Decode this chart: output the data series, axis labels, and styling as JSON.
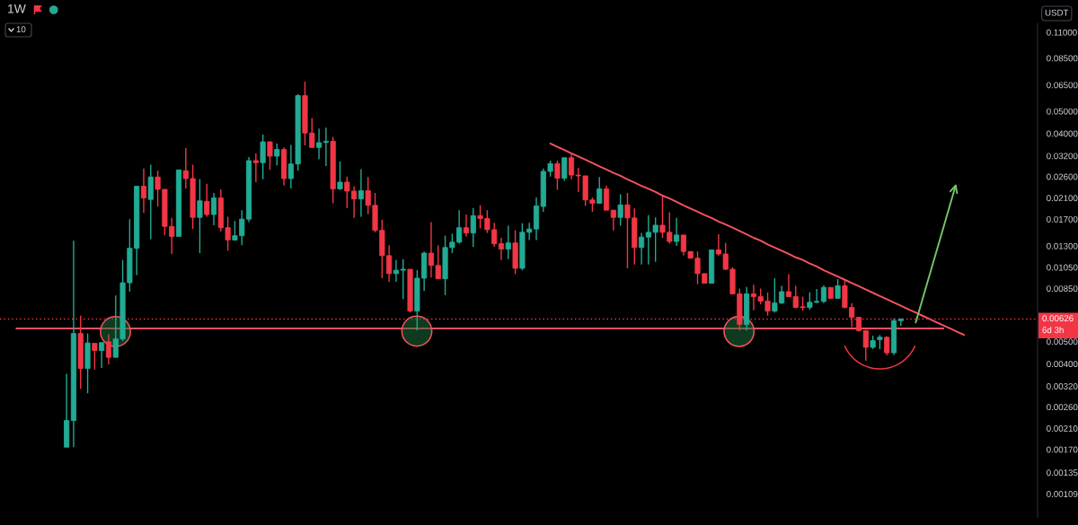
{
  "chart_data": {
    "type": "candlestick",
    "title": "1W",
    "ylabel": "USDT",
    "categories": [
      null,
      null,
      null,
      null,
      null,
      null,
      null,
      null,
      null,
      null,
      null,
      null,
      null,
      null,
      null,
      null,
      null,
      null,
      null,
      null,
      null,
      null,
      null,
      null,
      null,
      null,
      null,
      null,
      null,
      null,
      null,
      null,
      null,
      null,
      null,
      null,
      null,
      null,
      null,
      null,
      null,
      null,
      null,
      null,
      null,
      null,
      null,
      null,
      null,
      null,
      null,
      null,
      null,
      null,
      null,
      null,
      null,
      null,
      null,
      null,
      null,
      null,
      null,
      null,
      null,
      null,
      null,
      null,
      null,
      null,
      null,
      null,
      null,
      null,
      null,
      null,
      null,
      null,
      null,
      null,
      null,
      null,
      null,
      null,
      null,
      null,
      null,
      null,
      null,
      null,
      null,
      null,
      null,
      null,
      null,
      null,
      null,
      null,
      null,
      null,
      null,
      null,
      null,
      null,
      null,
      null,
      null,
      null,
      null,
      null,
      null,
      null,
      null,
      null,
      null,
      null,
      null,
      null,
      null,
      null,
      null,
      null,
      null,
      null,
      null,
      null,
      null,
      null,
      null,
      null,
      null,
      null,
      null,
      null,
      null,
      null,
      null,
      null,
      null,
      null,
      null,
      null,
      null,
      null,
      null,
      null,
      null,
      null
    ],
    "ohlc": [
      null,
      null,
      null,
      null,
      null,
      null,
      null,
      null,
      null,
      [
        0.00174,
        0.00362,
        0.00174,
        0.00227
      ],
      [
        0.00227,
        0.0137,
        0.00174,
        0.00542
      ],
      [
        0.00542,
        0.00648,
        0.00312,
        0.00382
      ],
      [
        0.00382,
        0.00542,
        0.00298,
        0.00493
      ],
      [
        0.00491,
        0.00491,
        0.00378,
        0.00457
      ],
      [
        0.00457,
        0.00495,
        0.00384,
        0.00495
      ],
      [
        0.00499,
        0.00537,
        0.00398,
        0.00427
      ],
      [
        0.00427,
        0.00793,
        0.00427,
        0.00513
      ],
      [
        0.00513,
        0.0113,
        0.00503,
        0.009
      ],
      [
        0.009,
        0.017,
        0.00824,
        0.0127
      ],
      [
        0.0127,
        0.0236,
        0.00971,
        0.0236
      ],
      [
        0.0236,
        0.0282,
        0.0181,
        0.021
      ],
      [
        0.0207,
        0.0293,
        0.0139,
        0.0259
      ],
      [
        0.0259,
        0.0276,
        0.0193,
        0.0229
      ],
      [
        0.0229,
        0.0229,
        0.0145,
        0.0158
      ],
      [
        0.0158,
        0.0172,
        0.012,
        0.0143
      ],
      [
        0.0143,
        0.0278,
        0.0143,
        0.0278
      ],
      [
        0.0276,
        0.0346,
        0.0231,
        0.0255
      ],
      [
        0.0255,
        0.0293,
        0.0154,
        0.0173
      ],
      [
        0.0173,
        0.0254,
        0.0121,
        0.0204
      ],
      [
        0.0203,
        0.0242,
        0.0174,
        0.0178
      ],
      [
        0.0178,
        0.0221,
        0.016,
        0.021
      ],
      [
        0.021,
        0.0229,
        0.015,
        0.0156
      ],
      [
        0.0156,
        0.0174,
        0.0124,
        0.0138
      ],
      [
        0.0138,
        0.0167,
        0.0137,
        0.0144
      ],
      [
        0.0144,
        0.0186,
        0.0131,
        0.017
      ],
      [
        0.017,
        0.0316,
        0.0165,
        0.0305
      ],
      [
        0.0305,
        0.0328,
        0.0246,
        0.0299
      ],
      [
        0.0299,
        0.0396,
        0.0253,
        0.0368
      ],
      [
        0.0368,
        0.0371,
        0.0278,
        0.0319
      ],
      [
        0.0319,
        0.0362,
        0.0291,
        0.0341
      ],
      [
        0.0341,
        0.0348,
        0.0238,
        0.0255
      ],
      [
        0.0255,
        0.0357,
        0.0231,
        0.0295
      ],
      [
        0.0295,
        0.0593,
        0.0276,
        0.0584
      ],
      [
        0.0584,
        0.0672,
        0.0355,
        0.0402
      ],
      [
        0.0402,
        0.0467,
        0.0346,
        0.0348
      ],
      [
        0.0348,
        0.042,
        0.0309,
        0.0365
      ],
      [
        0.0366,
        0.0424,
        0.0289,
        0.037
      ],
      [
        0.037,
        0.0387,
        0.0199,
        0.023
      ],
      [
        0.023,
        0.0302,
        0.0228,
        0.0246
      ],
      [
        0.0246,
        0.026,
        0.019,
        0.0225
      ],
      [
        0.0225,
        0.0236,
        0.0172,
        0.0208
      ],
      [
        0.0208,
        0.028,
        0.0174,
        0.0226
      ],
      [
        0.0226,
        0.0259,
        0.0179,
        0.0195
      ],
      [
        0.0195,
        0.0221,
        0.0149,
        0.0152
      ],
      [
        0.0152,
        0.0169,
        0.00942,
        0.0118
      ],
      [
        0.0118,
        0.0131,
        0.00909,
        0.00986
      ],
      [
        0.00986,
        0.0113,
        0.00909,
        0.0102
      ],
      [
        0.0102,
        0.0114,
        0.00765,
        0.0103
      ],
      [
        0.0103,
        0.0103,
        0.00668,
        0.00678
      ],
      [
        0.00678,
        0.0102,
        0.00559,
        0.00942
      ],
      [
        0.00942,
        0.0123,
        0.00829,
        0.0121
      ],
      [
        0.0121,
        0.0165,
        0.00949,
        0.0107
      ],
      [
        0.0107,
        0.0131,
        0.00936,
        0.00936
      ],
      [
        0.00936,
        0.0144,
        0.00795,
        0.0128
      ],
      [
        0.0128,
        0.0147,
        0.0121,
        0.0135
      ],
      [
        0.0135,
        0.0186,
        0.0133,
        0.0156
      ],
      [
        0.0156,
        0.0178,
        0.0143,
        0.0148
      ],
      [
        0.0148,
        0.019,
        0.0129,
        0.0176
      ],
      [
        0.0176,
        0.0195,
        0.0155,
        0.0171
      ],
      [
        0.0171,
        0.0186,
        0.0148,
        0.0153
      ],
      [
        0.0153,
        0.0164,
        0.0129,
        0.0133
      ],
      [
        0.0133,
        0.0141,
        0.0113,
        0.0126
      ],
      [
        0.0126,
        0.0159,
        0.0114,
        0.0134
      ],
      [
        0.0134,
        0.0152,
        0.0098,
        0.0104
      ],
      [
        0.0104,
        0.0163,
        0.0102,
        0.0149
      ],
      [
        0.0149,
        0.0164,
        0.0138,
        0.0154
      ],
      [
        0.0154,
        0.0211,
        0.0138,
        0.0194
      ],
      [
        0.0193,
        0.0282,
        0.0183,
        0.0274
      ],
      [
        0.0274,
        0.0305,
        0.026,
        0.0296
      ],
      [
        0.0296,
        0.0305,
        0.0228,
        0.0256
      ],
      [
        0.0256,
        0.0314,
        0.0249,
        0.0314
      ],
      [
        0.0314,
        0.0326,
        0.0253,
        0.0264
      ],
      [
        0.0264,
        0.0284,
        0.0223,
        0.0262
      ],
      [
        0.0262,
        0.0262,
        0.0194,
        0.0206
      ],
      [
        0.0206,
        0.0211,
        0.0183,
        0.0199
      ],
      [
        0.0199,
        0.0259,
        0.0199,
        0.023
      ],
      [
        0.023,
        0.0238,
        0.0186,
        0.0186
      ],
      [
        0.0186,
        0.0186,
        0.0152,
        0.0173
      ],
      [
        0.0173,
        0.0218,
        0.0159,
        0.0196
      ],
      [
        0.0196,
        0.0221,
        0.0104,
        0.0172
      ],
      [
        0.0172,
        0.0189,
        0.0108,
        0.0128
      ],
      [
        0.0128,
        0.0148,
        0.0108,
        0.0142
      ],
      [
        0.0142,
        0.0177,
        0.0108,
        0.0149
      ],
      [
        0.0149,
        0.0173,
        0.0111,
        0.016
      ],
      [
        0.016,
        0.0213,
        0.0141,
        0.0149
      ],
      [
        0.0149,
        0.0182,
        0.0133,
        0.0136
      ],
      [
        0.0136,
        0.0172,
        0.013,
        0.0145
      ],
      [
        0.0145,
        0.0145,
        0.0118,
        0.0123
      ],
      [
        0.0123,
        0.0123,
        0.0115,
        0.0115
      ],
      [
        0.0115,
        0.0123,
        0.00887,
        0.00986
      ],
      [
        0.00986,
        0.00986,
        0.00895,
        0.00895
      ],
      [
        0.00895,
        0.0125,
        0.00895,
        0.0125
      ],
      [
        0.0125,
        0.0146,
        0.0118,
        0.012
      ],
      [
        0.012,
        0.0134,
        0.0102,
        0.0103
      ],
      [
        0.0103,
        0.0105,
        0.00805,
        0.00805
      ],
      [
        0.00805,
        0.00849,
        0.00559,
        0.00593
      ],
      [
        0.00593,
        0.00862,
        0.00559,
        0.00805
      ],
      [
        0.00805,
        0.00882,
        0.00684,
        0.00783
      ],
      [
        0.00783,
        0.00849,
        0.00725,
        0.00749
      ],
      [
        0.00749,
        0.00817,
        0.00648,
        0.00678
      ],
      [
        0.00678,
        0.00942,
        0.00668,
        0.00735
      ],
      [
        0.00735,
        0.00873,
        0.00728,
        0.00823
      ],
      [
        0.00823,
        0.00981,
        0.00783,
        0.00783
      ],
      [
        0.00783,
        0.00873,
        0.00697,
        0.00703
      ],
      [
        0.00708,
        0.00783,
        0.00681,
        0.00702
      ],
      [
        0.00703,
        0.00818,
        0.00687,
        0.0074
      ],
      [
        0.0074,
        0.00845,
        0.00735,
        0.00747
      ],
      [
        0.00747,
        0.00878,
        0.00735,
        0.00859
      ],
      [
        0.00859,
        0.00859,
        0.00765,
        0.0077
      ],
      [
        0.0077,
        0.00933,
        0.0077,
        0.00873
      ],
      [
        0.00873,
        0.00917,
        0.00697,
        0.00703
      ],
      [
        0.00703,
        0.00735,
        0.00577,
        0.00637
      ],
      [
        0.00637,
        0.00637,
        0.00552,
        0.00558
      ],
      [
        0.00558,
        0.00558,
        0.00413,
        0.00472
      ],
      [
        0.00472,
        0.0053,
        0.00464,
        0.00505
      ],
      [
        0.0051,
        0.00534,
        0.00464,
        0.00522
      ],
      [
        0.00522,
        0.00527,
        0.00435,
        0.00447
      ],
      [
        0.00447,
        0.0063,
        0.00437,
        0.00616
      ],
      [
        0.00616,
        0.0063,
        0.00586,
        0.00626
      ],
      null,
      null,
      null,
      null,
      null,
      null,
      null,
      null,
      null,
      null,
      null,
      null,
      null,
      null,
      null,
      null,
      null,
      null,
      null
    ],
    "colors": [
      null,
      null,
      null,
      null,
      null,
      null,
      null,
      null,
      null,
      "#22ab94",
      "#22ab94",
      "#f23645",
      "#22ab94",
      "#f23645",
      "#22ab94",
      "#f23645",
      "#22ab94",
      "#22ab94",
      "#22ab94",
      "#22ab94",
      "#f23645",
      "#22ab94",
      "#f23645",
      "#f23645",
      "#f23645",
      "#22ab94",
      "#f23645",
      "#f23645",
      "#22ab94",
      "#f23645",
      "#22ab94",
      "#f23645",
      "#f23645",
      "#22ab94",
      "#22ab94",
      "#22ab94",
      "#f23645",
      "#22ab94",
      "#f23645",
      "#22ab94",
      "#f23645",
      "#22ab94",
      "#22ab94",
      "#f23645",
      "#f23645",
      "#22ab94",
      "#22ab94",
      "#f23645",
      "#22ab94",
      "#f23645",
      "#f23645",
      "#22ab94",
      "#f23645",
      "#f23645",
      "#f23645",
      "#f23645",
      "#22ab94",
      "#22ab94",
      "#f23645",
      "#22ab94",
      "#22ab94",
      "#f23645",
      "#f23645",
      "#22ab94",
      "#22ab94",
      "#22ab94",
      "#f23645",
      "#22ab94",
      "#f23645",
      "#f23645",
      "#f23645",
      "#f23645",
      "#22ab94",
      "#f23645",
      "#22ab94",
      "#22ab94",
      "#22ab94",
      "#22ab94",
      "#22ab94",
      "#f23645",
      "#22ab94",
      "#f23645",
      "#f23645",
      "#f23645",
      "#f23645",
      "#22ab94",
      "#f23645",
      "#f23645",
      "#22ab94",
      "#f23645",
      "#f23645",
      "#22ab94",
      "#22ab94",
      "#22ab94",
      "#f23645",
      "#f23645",
      "#22ab94",
      "#f23645",
      "#f23645",
      "#f23645",
      "#f23645",
      "#22ab94",
      "#f23645",
      "#f23645",
      "#f23645",
      "#f23645",
      "#22ab94",
      "#f23645",
      "#f23645",
      "#f23645",
      "#22ab94",
      "#22ab94",
      "#f23645",
      "#f23645",
      "#f23645",
      "#22ab94",
      "#22ab94",
      "#22ab94",
      "#f23645",
      "#22ab94",
      "#f23645",
      "#f23645",
      "#f23645",
      "#f23645",
      "#22ab94",
      "#22ab94",
      "#f23645",
      "#22ab94",
      "#22ab94",
      null,
      null,
      null,
      null,
      null,
      null,
      null,
      null,
      null,
      null,
      null,
      null,
      null,
      null,
      null,
      null,
      null,
      null,
      null
    ],
    "series": [
      {
        "type": "line",
        "color": "#f7525f",
        "values": [
          null,
          null,
          null,
          null,
          null,
          null,
          null,
          null,
          null,
          null,
          null,
          null,
          null,
          null,
          null,
          null,
          null,
          null,
          null,
          null,
          null,
          null,
          null,
          null,
          null,
          null,
          null,
          null,
          null,
          null,
          null,
          null,
          null,
          null,
          null,
          null,
          null,
          null,
          null,
          null,
          null,
          null,
          null,
          null,
          null,
          null,
          null,
          null,
          null,
          null,
          null,
          null,
          null,
          null,
          null,
          null,
          null,
          null,
          null,
          null,
          null,
          null,
          null,
          null,
          null,
          null,
          null,
          null,
          null,
          null,
          null,
          null,
          null,
          null,
          null,
          null,
          null,
          null,
          0.0362,
          0.035,
          0.0339,
          0.0328,
          0.0318,
          0.0308,
          0.0298,
          0.0288,
          0.0279,
          0.027,
          0.0262,
          0.0253,
          0.0245,
          0.0237,
          0.023,
          0.0223,
          0.0215,
          0.0209,
          0.0202,
          0.0195,
          0.0189,
          0.0183,
          0.0177,
          0.0172,
          0.0166,
          0.0161,
          0.0156,
          0.0151,
          0.0146,
          0.0141,
          0.0137,
          0.0132,
          0.0128,
          0.0124,
          0.012,
          0.0116,
          0.0113,
          0.0109,
          0.0106,
          0.0102,
          0.00989,
          0.00957,
          0.00927,
          0.00897,
          0.00869,
          0.00841,
          0.00814,
          0.00788,
          0.00763,
          0.00739,
          0.00715,
          0.00692,
          0.0067,
          0.00649,
          0.00628,
          0.00608,
          0.00589,
          0.0057,
          0.00552,
          0.00534,
          null,
          null,
          null,
          null,
          null,
          null,
          null,
          null,
          null,
          null
        ]
      }
    ],
    "ref_lines": [
      {
        "axis": "y",
        "value": 0.0057,
        "color": "#f7525f"
      },
      {
        "axis": "y",
        "value": 0.00626,
        "label": "0.00626",
        "color": "#f23645",
        "line_style": "dotted"
      }
    ],
    "annotations": [
      "10",
      "6d 3h"
    ],
    "log": true,
    "ylim": [
      0.00086,
      0.12
    ],
    "yticks": [
      {
        "value": 0.11,
        "label": "0.11000"
      },
      {
        "value": 0.085,
        "label": "0.08500"
      },
      {
        "value": 0.065,
        "label": "0.06500"
      },
      {
        "value": 0.05,
        "label": "0.05000"
      },
      {
        "value": 0.04,
        "label": "0.04000"
      },
      {
        "value": 0.032,
        "label": "0.03200"
      },
      {
        "value": 0.026,
        "label": "0.02600"
      },
      {
        "value": 0.021,
        "label": "0.02100"
      },
      {
        "value": 0.017,
        "label": "0.01700"
      },
      {
        "value": 0.013,
        "label": "0.01300"
      },
      {
        "value": 0.0105,
        "label": "0.01050"
      },
      {
        "value": 0.0085,
        "label": "0.00850"
      },
      {
        "value": 0.005,
        "label": "0.00500"
      },
      {
        "value": 0.004,
        "label": "0.00400"
      },
      {
        "value": 0.0032,
        "label": "0.00320"
      },
      {
        "value": 0.0026,
        "label": "0.00260"
      },
      {
        "value": 0.0021,
        "label": "0.00210"
      },
      {
        "value": 0.0017,
        "label": "0.00170"
      },
      {
        "value": 0.00135,
        "label": "0.00135"
      },
      {
        "value": 0.00109,
        "label": "0.00109"
      }
    ],
    "tick_labels": "y"
  }
}
